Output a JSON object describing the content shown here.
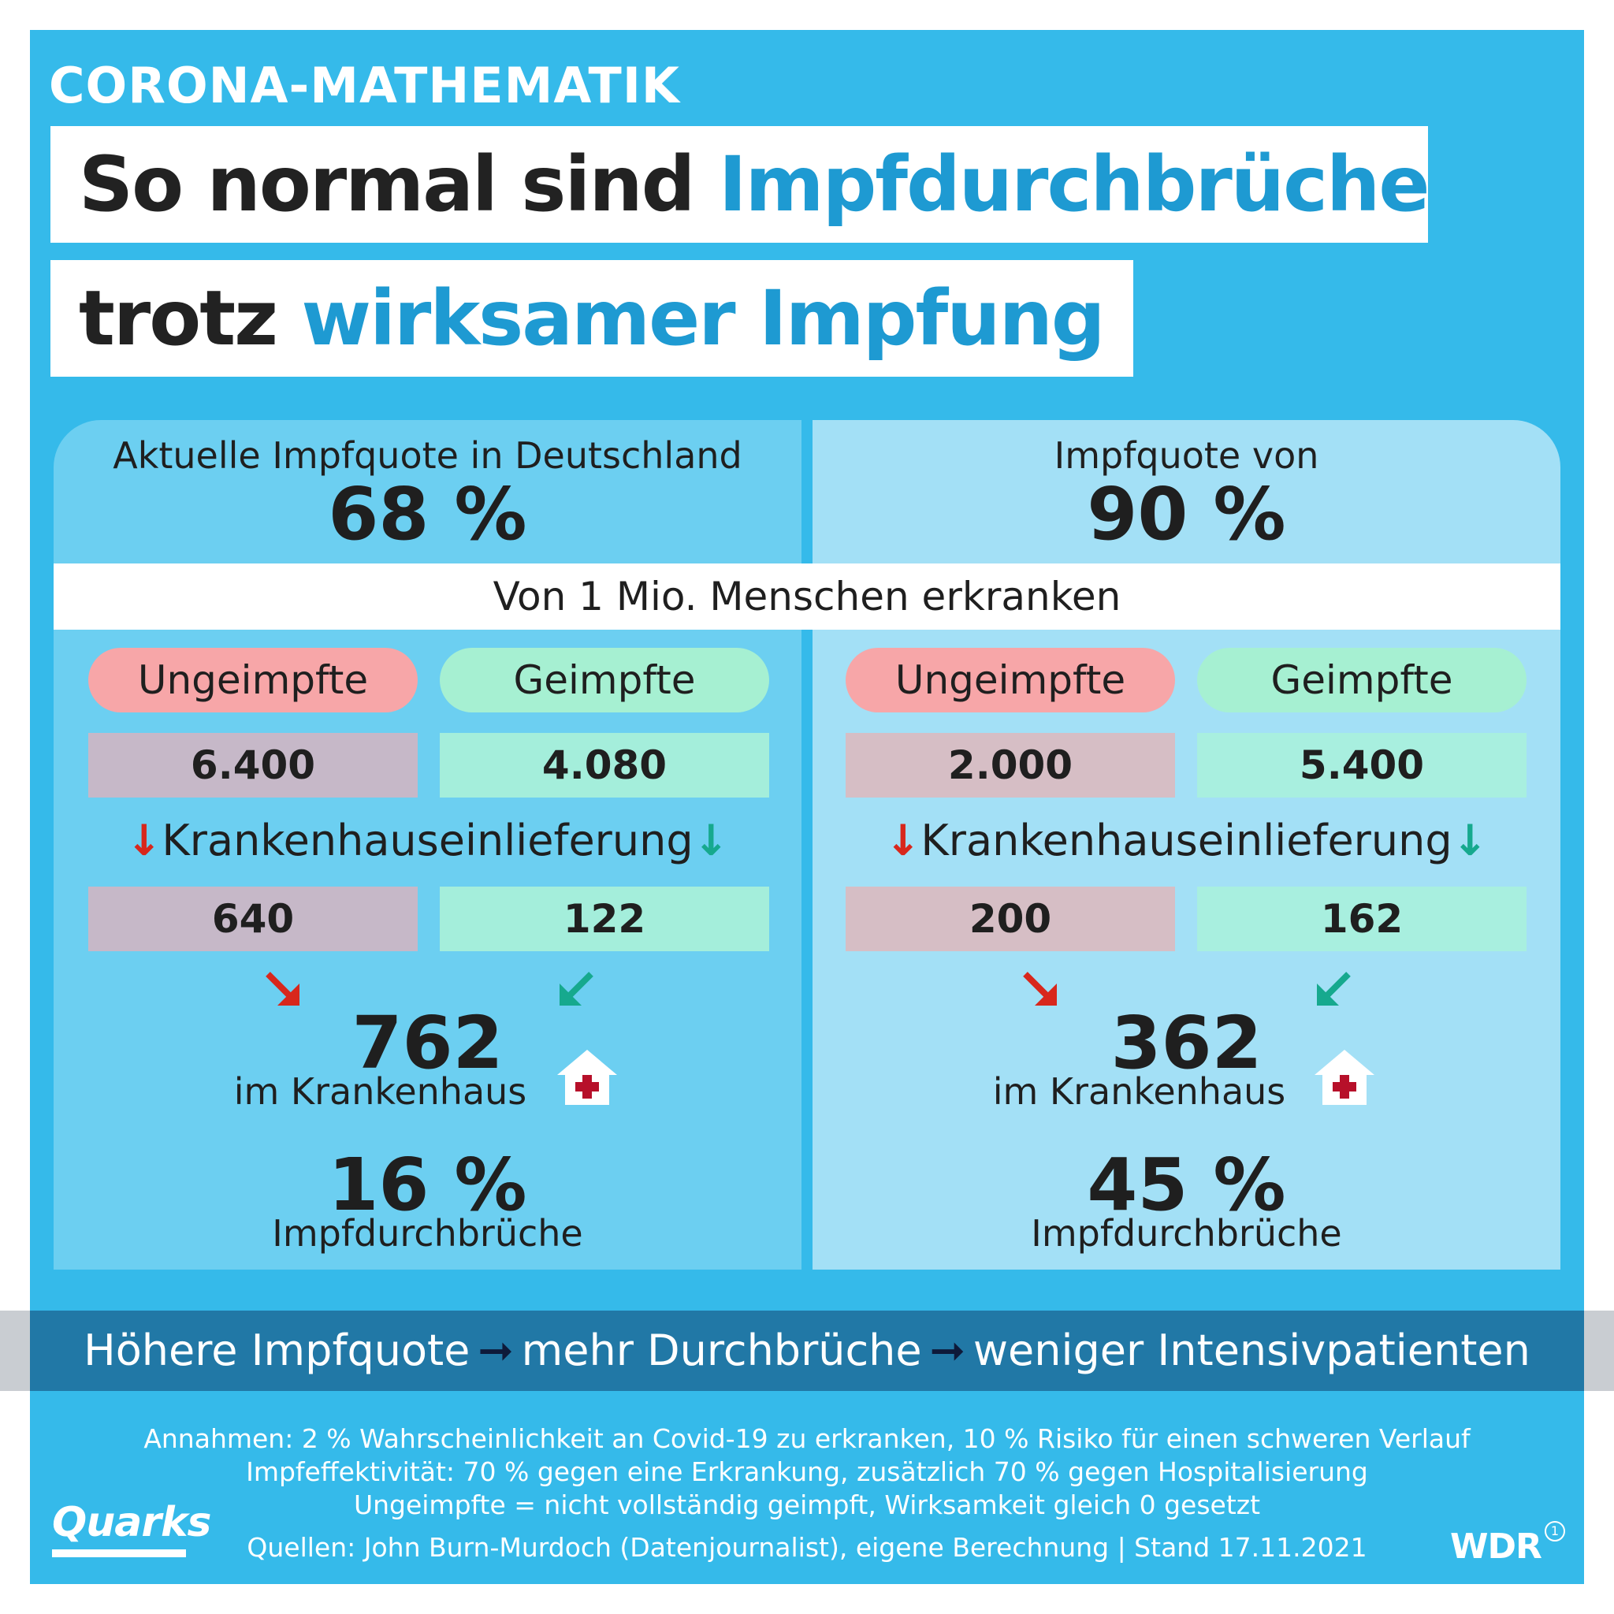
{
  "kicker": "CORONA-MATHEMATIK",
  "title": {
    "line1_dark": "So normal sind ",
    "line1_blue": "Impfdurchbrüche",
    "line2_dark": "trotz ",
    "line2_blue": "wirksamer Impfung"
  },
  "band": "Von 1 Mio. Menschen erkranken",
  "left": {
    "label": "Aktuelle Impfquote in Deutschland",
    "rate": "68 %",
    "unvaccinated_label": "Ungeimpfte",
    "vaccinated_label": "Geimpfte",
    "sick_unvaccinated": "6.400",
    "sick_vaccinated": "4.080",
    "hospital_label": "Krankenhauseinlieferung",
    "hosp_unvaccinated": "640",
    "hosp_vaccinated": "122",
    "total": "762",
    "total_label": "im Krankenhaus",
    "breakthrough_pct": "16 %",
    "breakthrough_label": "Impfdurchbrüche"
  },
  "right": {
    "label": "Impfquote von",
    "rate": "90 %",
    "unvaccinated_label": "Ungeimpfte",
    "vaccinated_label": "Geimpfte",
    "sick_unvaccinated": "2.000",
    "sick_vaccinated": "5.400",
    "hospital_label": "Krankenhauseinlieferung",
    "hosp_unvaccinated": "200",
    "hosp_vaccinated": "162",
    "total": "362",
    "total_label": "im Krankenhaus",
    "breakthrough_pct": "45 %",
    "breakthrough_label": "Impfdurchbrüche"
  },
  "conclusion": {
    "part1": "Höhere Impfquote",
    "part2": "mehr Durchbrüche",
    "part3": "weniger Intensivpatienten"
  },
  "notes": [
    "Annahmen: 2 % Wahrscheinlichkeit an Covid-19 zu erkranken, 10 % Risiko für einen schweren Verlauf",
    "Impfeffektivität: 70 % gegen eine Erkrankung, zusätzlich 70 % gegen Hospitalisierung",
    "Ungeimpfte = nicht vollständig geimpft, Wirksamkeit gleich 0 gesetzt"
  ],
  "sources": "Quellen: John Burn-Murdoch (Datenjournalist), eigene Berechnung | Stand 17.11.2021",
  "logos": {
    "left": "Quarks",
    "right": "WDR",
    "right_mark": "1"
  },
  "colors": {
    "background": "#35baea",
    "title_blue": "#1e9ad2",
    "unvaccinated": "#f7a6a8",
    "vaccinated": "#a6f0d2",
    "arrow_red": "#d8271c",
    "arrow_green": "#16a98e",
    "conclusion_band": "#2178a6"
  }
}
